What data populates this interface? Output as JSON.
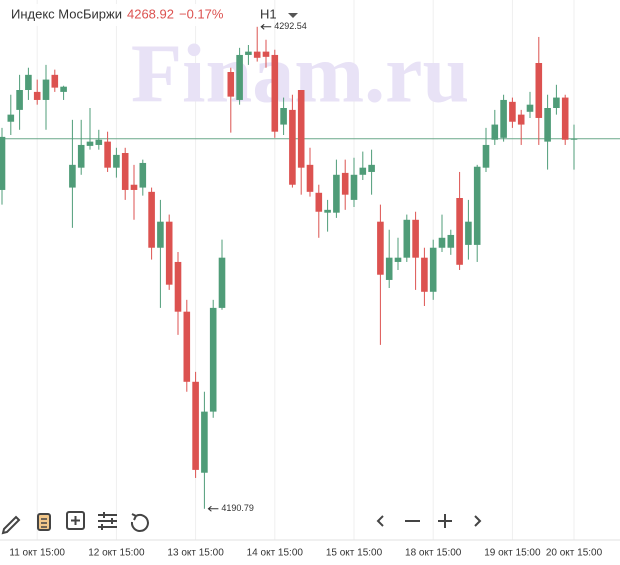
{
  "chart_data": {
    "type": "candlestick",
    "header": {
      "title": "Индекс МосБиржи",
      "change": "−0.17%",
      "timeframe": "H1"
    },
    "watermark": "Finam.ru",
    "last": 4268.92,
    "up_color": "#4f9c78",
    "down_color": "#dc5250",
    "last_color": "#6aa88a",
    "ylim": [
      4184.2,
      4298.2
    ],
    "max_label": 4292.54,
    "min_label": 4190.79,
    "categories": [
      null,
      null,
      null,
      null,
      "11 окт 15:00",
      null,
      null,
      null,
      null,
      null,
      null,
      null,
      null,
      "12 окт 15:00",
      null,
      null,
      null,
      null,
      null,
      null,
      null,
      null,
      "13 окт 15:00",
      null,
      null,
      null,
      null,
      null,
      null,
      null,
      null,
      "14 окт 15:00",
      null,
      null,
      null,
      null,
      null,
      null,
      null,
      null,
      "15 окт 15:00",
      null,
      null,
      null,
      null,
      null,
      null,
      null,
      null,
      "18 окт 15:00",
      null,
      null,
      null,
      null,
      null,
      null,
      null,
      null,
      "19 окт 15:00",
      null,
      null,
      null,
      null,
      null,
      null,
      "20 окт 15:00"
    ],
    "open": [
      4258.1,
      4272.5,
      4275.0,
      4279.2,
      4278.8,
      4277.1,
      4282.4,
      4278.8,
      4258.6,
      4262.8,
      4267.4,
      4267.6,
      4268.3,
      4262.8,
      4265.9,
      4259.2,
      4258.6,
      4257.7,
      4245.9,
      4251.4,
      4242.9,
      4232.4,
      4217.6,
      4198.4,
      4211.3,
      4233.2,
      4283.0,
      4277.1,
      4286.6,
      4287.3,
      4287.3,
      4286.6,
      4271.9,
      4275.0,
      4279.2,
      4263.4,
      4257.5,
      4253.3,
      4253.3,
      4261.7,
      4256.0,
      4261.3,
      4261.9,
      4251.4,
      4239.1,
      4242.9,
      4243.8,
      4251.8,
      4243.8,
      4236.6,
      4245.9,
      4245.9,
      4256.4,
      4246.5,
      4246.5,
      4262.8,
      4268.7,
      4269.1,
      4276.7,
      4274.0,
      4274.6,
      4284.9,
      4268.3,
      4275.4,
      4277.6,
      4268.7
    ],
    "high": [
      4271.2,
      4278.2,
      4282.4,
      4283.9,
      4281.4,
      4284.5,
      4283.5,
      4280.1,
      4272.9,
      4272.9,
      4275.4,
      4270.8,
      4270.4,
      4267.0,
      4267.0,
      4263.4,
      4264.5,
      4258.6,
      4256.0,
      4252.9,
      4245.0,
      4234.9,
      4219.7,
      4215.5,
      4234.9,
      4247.6,
      4283.9,
      4288.1,
      4288.7,
      4292.54,
      4289.8,
      4287.7,
      4277.6,
      4278.2,
      4279.2,
      4267.0,
      4259.2,
      4256.0,
      4264.5,
      4264.5,
      4264.9,
      4266.2,
      4266.6,
      4255.0,
      4249.7,
      4248.0,
      4252.9,
      4253.5,
      4245.9,
      4247.6,
      4252.9,
      4249.7,
      4261.9,
      4256.0,
      4263.4,
      4271.2,
      4275.0,
      4278.2,
      4277.6,
      4275.0,
      4278.8,
      4290.4,
      4278.2,
      4280.3,
      4278.2,
      4271.9
    ],
    "low": [
      4255.0,
      4269.7,
      4270.8,
      4277.1,
      4276.1,
      4270.8,
      4278.8,
      4277.1,
      4250.1,
      4261.3,
      4266.6,
      4266.6,
      4261.9,
      4260.7,
      4256.0,
      4251.8,
      4256.9,
      4243.4,
      4233.2,
      4237.0,
      4227.5,
      4215.5,
      4197.3,
      4190.79,
      4210.0,
      4232.8,
      4270.2,
      4276.1,
      4284.5,
      4285.2,
      4283.9,
      4269.1,
      4269.7,
      4258.6,
      4257.1,
      4256.7,
      4248.0,
      4249.3,
      4252.2,
      4253.9,
      4254.5,
      4260.2,
      4257.1,
      4225.4,
      4237.4,
      4241.2,
      4242.9,
      4237.0,
      4233.6,
      4234.9,
      4245.0,
      4244.4,
      4241.2,
      4243.4,
      4242.9,
      4261.9,
      4267.6,
      4268.3,
      4271.2,
      4267.6,
      4273.3,
      4267.6,
      4262.4,
      4274.0,
      4267.6,
      4262.4
    ],
    "close": [
      4269.3,
      4274.0,
      4279.2,
      4282.4,
      4277.1,
      4281.4,
      4279.7,
      4279.9,
      4263.4,
      4267.6,
      4268.3,
      4268.7,
      4262.8,
      4265.5,
      4258.1,
      4258.1,
      4263.8,
      4245.9,
      4251.4,
      4238.1,
      4232.4,
      4217.6,
      4199.0,
      4211.3,
      4233.2,
      4243.8,
      4277.8,
      4286.6,
      4287.3,
      4286.0,
      4286.2,
      4270.4,
      4275.4,
      4259.2,
      4262.8,
      4257.7,
      4253.5,
      4253.9,
      4261.3,
      4257.1,
      4261.3,
      4262.8,
      4263.4,
      4240.2,
      4243.8,
      4243.8,
      4251.8,
      4243.8,
      4236.6,
      4245.9,
      4248.0,
      4248.6,
      4242.3,
      4251.4,
      4263.0,
      4267.6,
      4271.9,
      4277.1,
      4272.5,
      4271.9,
      4276.1,
      4273.3,
      4275.4,
      4277.6,
      4268.7,
      4268.92
    ]
  }
}
